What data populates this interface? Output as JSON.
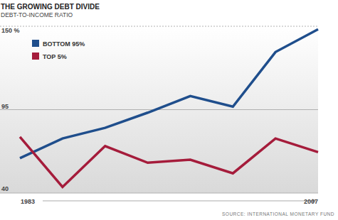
{
  "chart_data": {
    "type": "line",
    "title": "THE GROWING DEBT DIVIDE",
    "subtitle": "DEBT-TO-INCOME RATIO",
    "categories": [
      "1983",
      null,
      null,
      null,
      null,
      null,
      null,
      "2007"
    ],
    "series": [
      {
        "name": "BOTTOM 95%",
        "color": "#1f4e8c",
        "values": [
          63,
          76,
          83,
          93,
          104,
          97,
          133,
          148
        ]
      },
      {
        "name": "TOP 5%",
        "color": "#a51c3b",
        "values": [
          77,
          44,
          71,
          60,
          62,
          53,
          76,
          67
        ]
      }
    ],
    "ylim": [
      40,
      150
    ],
    "yticks": [
      40,
      95,
      {
        "value": 150,
        "label": "150 %"
      }
    ],
    "grid": true,
    "legend": "top-left",
    "source": "SOURCE: INTERNATIONAL MONETARY FUND"
  }
}
